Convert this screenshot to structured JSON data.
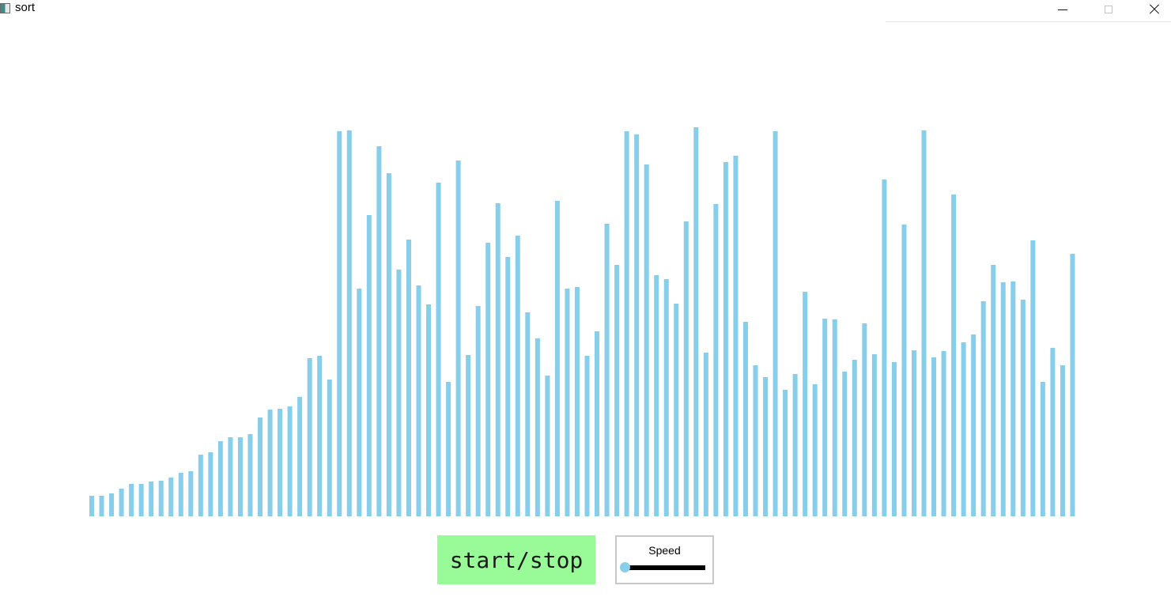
{
  "window": {
    "title": "sort",
    "controls": [
      "minimize",
      "maximize",
      "close"
    ],
    "icon": "app-icon"
  },
  "colors": {
    "bar": "#87ceeb",
    "button_bg": "#98fb98",
    "slider_track": "#000000",
    "slider_handle": "#87ceeb"
  },
  "chart_data": {
    "type": "bar",
    "series": [
      {
        "values": [
          26,
          26,
          29,
          35,
          41,
          41,
          44,
          45,
          49,
          55,
          57,
          78,
          81,
          95,
          100,
          100,
          104,
          125,
          135,
          136,
          139,
          151,
          200,
          203,
          173,
          487,
          488,
          288,
          381,
          468,
          434,
          312,
          350,
          292,
          268,
          422,
          170,
          450,
          204,
          266,
          346,
          396,
          328,
          355,
          258,
          225,
          178,
          399,
          288,
          290,
          203,
          234,
          370,
          318,
          487,
          483,
          445,
          305,
          300,
          269,
          373,
          492,
          207,
          395,
          448,
          456,
          246,
          191,
          176,
          487,
          160,
          180,
          284,
          167,
          250,
          249,
          183,
          198,
          244,
          205,
          426,
          195,
          369,
          210,
          488,
          201,
          209,
          407,
          220,
          230,
          272,
          318,
          296,
          297,
          274,
          349,
          170,
          213,
          191,
          332
        ]
      }
    ],
    "ylim": [
      0,
      500
    ],
    "grid": false,
    "legend": "none"
  },
  "controls": {
    "start_stop_label": "start/stop",
    "speed_label": "Speed",
    "speed_value": 0
  }
}
